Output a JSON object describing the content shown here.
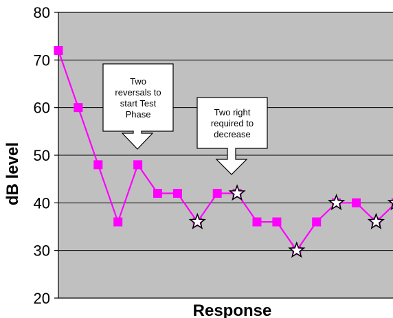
{
  "chart_data": {
    "type": "line",
    "title": "",
    "xlabel": "Response",
    "ylabel": "dB level",
    "ylim": [
      20,
      80
    ],
    "yticks": [
      20,
      30,
      40,
      50,
      60,
      70,
      80
    ],
    "grid": true,
    "legend": "none",
    "colors": {
      "plot_background": "#c0c0c0",
      "series": "#ff00ff",
      "gridline": "#000000",
      "star_fill": "#ffffff",
      "star_stroke": "#000000"
    },
    "series": [
      {
        "x": [
          1,
          2,
          3,
          4,
          5,
          6,
          7,
          8,
          9,
          10,
          11,
          12,
          13,
          14,
          15,
          16,
          17,
          18
        ],
        "y": [
          72,
          60,
          48,
          36,
          48,
          42,
          42,
          36,
          42,
          42,
          36,
          36,
          30,
          36,
          40,
          40,
          36,
          40
        ],
        "star_marked_indices": [
          7,
          9,
          12,
          14,
          16,
          17
        ]
      }
    ],
    "annotations": [
      {
        "lines": [
          "Two",
          "reversals to",
          "start Test",
          "Phase"
        ],
        "points_to_index": 4
      },
      {
        "lines": [
          "Two right",
          "required to",
          "decrease"
        ],
        "points_to_index": 8
      }
    ]
  }
}
